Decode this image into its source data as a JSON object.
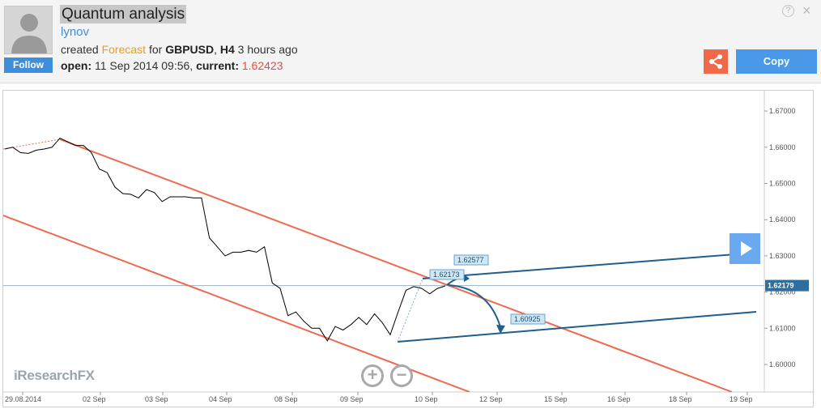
{
  "header": {
    "title": "Quantum analysis",
    "author": "lynov",
    "created_prefix": "created",
    "forecast_word": "Forecast",
    "for_word": "for",
    "symbol": "GBPUSD",
    "timeframe": "H4",
    "time_ago": "3 hours ago",
    "open_label": "open:",
    "open_value": "11 Sep 2014 09:56,",
    "current_label": "current:",
    "current_value": "1.62423",
    "follow_label": "Follow",
    "copy_label": "Copy",
    "help_glyph": "?",
    "close_glyph": "×",
    "icons": [
      "avatar-icon",
      "help-icon",
      "close-icon",
      "share-icon",
      "play-icon",
      "zoom-in-icon",
      "zoom-out-icon"
    ],
    "colors": {
      "accent": "#3d8fdc",
      "forecast": "#f39c12",
      "current": "#e74c3c",
      "share": "#f06a4a"
    }
  },
  "chart_data": {
    "type": "line",
    "symbol": "GBPUSD",
    "timeframe": "H4",
    "x_tick_labels": [
      "29.08.2014",
      "02 Sep",
      "03 Sep",
      "04 Sep",
      "08 Sep",
      "09 Sep",
      "10 Sep",
      "12 Sep",
      "15 Sep",
      "16 Sep",
      "18 Sep",
      "19 Sep"
    ],
    "y_tick_labels": [
      "1.67000",
      "1.66000",
      "1.65000",
      "1.64000",
      "1.63000",
      "1.62000",
      "1.61000",
      "1.60000"
    ],
    "ylim": [
      1.5925,
      1.673
    ],
    "grid": false,
    "current_price_label": "1.62179",
    "current_price": 1.62179,
    "price_series": [
      1.6595,
      1.66,
      1.6585,
      1.6583,
      1.6592,
      1.6595,
      1.66,
      1.6625,
      1.6615,
      1.6605,
      1.6605,
      1.6585,
      1.654,
      1.653,
      1.649,
      1.6472,
      1.647,
      1.646,
      1.6483,
      1.6475,
      1.645,
      1.6463,
      1.6463,
      1.6463,
      1.646,
      1.646,
      1.635,
      1.6325,
      1.63,
      1.631,
      1.631,
      1.6315,
      1.631,
      1.6325,
      1.6225,
      1.621,
      1.6135,
      1.6145,
      1.612,
      1.61,
      1.61,
      1.6065,
      1.6105,
      1.6095,
      1.611,
      1.613,
      1.611,
      1.614,
      1.6115,
      1.6082,
      1.6145,
      1.6205,
      1.6215,
      1.621,
      1.6195,
      1.621,
      1.6217
    ],
    "forecast_labels": [
      "1.62577",
      "1.62173",
      "1.60925"
    ],
    "forecast_values": [
      1.62577,
      1.62173,
      1.60925
    ],
    "colors": {
      "channel": "#ef6a50",
      "projection": "#1f5f8b",
      "price": "#000000"
    }
  }
}
